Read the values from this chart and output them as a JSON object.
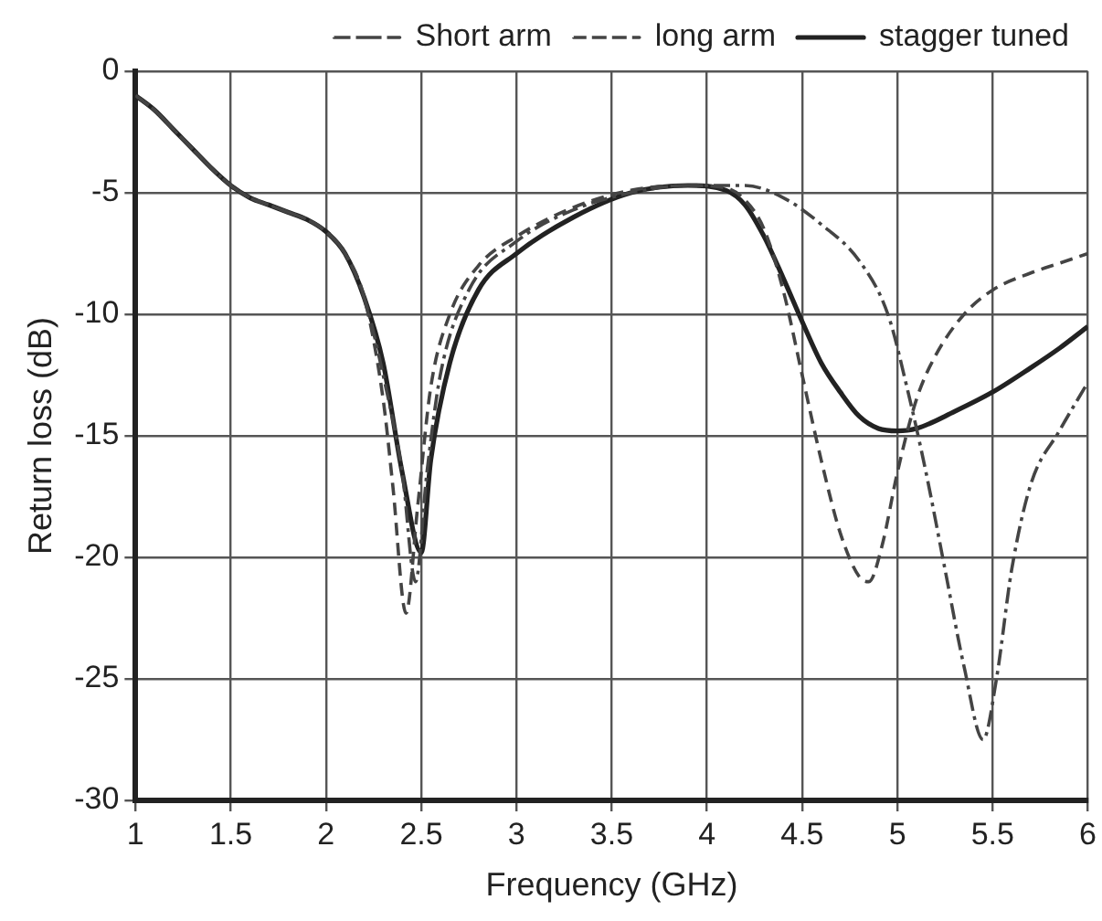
{
  "chart_data": {
    "type": "line",
    "xlabel": "Frequency (GHz)",
    "ylabel": "Return loss (dB)",
    "xlim": [
      1,
      6
    ],
    "xticks": [
      1,
      1.5,
      2,
      2.5,
      3,
      3.5,
      4,
      4.5,
      5,
      5.5,
      6
    ],
    "ylim": [
      -30,
      0
    ],
    "yticks": [
      -30,
      -25,
      -20,
      -15,
      -10,
      -5,
      0
    ],
    "grid": true,
    "legend": "top",
    "marker": "none",
    "series": [
      {
        "name": "Short arm",
        "color": "#444444",
        "line_style": "dashdot",
        "x": [
          1.0,
          1.1,
          1.2,
          1.3,
          1.4,
          1.5,
          1.6,
          1.7,
          1.8,
          1.9,
          2.0,
          2.1,
          2.2,
          2.3,
          2.4,
          2.47,
          2.53,
          2.6,
          2.75,
          3.0,
          3.3,
          3.6,
          3.9,
          4.2,
          4.4,
          4.6,
          4.8,
          4.95,
          5.05,
          5.15,
          5.25,
          5.35,
          5.45,
          5.52,
          5.6,
          5.7,
          5.85,
          6.0
        ],
        "values": [
          -1,
          -1.6,
          -2.4,
          -3.2,
          -4.0,
          -4.7,
          -5.2,
          -5.5,
          -5.8,
          -6.1,
          -6.6,
          -7.5,
          -9.3,
          -12.5,
          -16.5,
          -21,
          -16.5,
          -12.5,
          -9,
          -7,
          -5.7,
          -5.0,
          -4.7,
          -4.7,
          -5.2,
          -6.3,
          -7.8,
          -10,
          -13,
          -16.5,
          -20.5,
          -24.5,
          -27.5,
          -25,
          -20.5,
          -17,
          -14.8,
          -12.8
        ]
      },
      {
        "name": "long arm",
        "color": "#444444",
        "line_style": "dashed",
        "x": [
          1.0,
          1.1,
          1.2,
          1.3,
          1.4,
          1.5,
          1.6,
          1.7,
          1.8,
          1.9,
          2.0,
          2.1,
          2.2,
          2.3,
          2.35,
          2.42,
          2.48,
          2.55,
          2.65,
          2.8,
          3.0,
          3.3,
          3.6,
          3.9,
          4.1,
          4.2,
          4.3,
          4.4,
          4.5,
          4.6,
          4.7,
          4.8,
          4.85,
          4.92,
          5.0,
          5.1,
          5.2,
          5.35,
          5.5,
          5.7,
          5.85,
          6.0
        ],
        "values": [
          -1,
          -1.6,
          -2.4,
          -3.2,
          -4.0,
          -4.7,
          -5.2,
          -5.5,
          -5.8,
          -6.1,
          -6.6,
          -7.5,
          -9.3,
          -13.5,
          -17,
          -22.3,
          -18,
          -13,
          -10,
          -8,
          -6.8,
          -5.6,
          -4.9,
          -4.7,
          -4.8,
          -5.3,
          -6.5,
          -9,
          -12.5,
          -16,
          -19,
          -20.8,
          -21,
          -19.5,
          -16.5,
          -13.5,
          -11.7,
          -10,
          -9,
          -8.3,
          -7.9,
          -7.5
        ]
      },
      {
        "name": "stagger tuned",
        "color": "#222222",
        "line_style": "solid",
        "x": [
          1.0,
          1.1,
          1.2,
          1.3,
          1.4,
          1.5,
          1.6,
          1.7,
          1.8,
          1.9,
          2.0,
          2.1,
          2.2,
          2.3,
          2.4,
          2.5,
          2.55,
          2.65,
          2.8,
          3.0,
          3.3,
          3.6,
          3.9,
          4.1,
          4.2,
          4.3,
          4.4,
          4.5,
          4.6,
          4.7,
          4.8,
          4.9,
          5.0,
          5.1,
          5.3,
          5.5,
          5.7,
          5.85,
          6.0
        ],
        "values": [
          -1,
          -1.6,
          -2.4,
          -3.2,
          -4.0,
          -4.7,
          -5.2,
          -5.5,
          -5.8,
          -6.1,
          -6.6,
          -7.5,
          -9.3,
          -12,
          -16.5,
          -19.8,
          -16,
          -12,
          -9,
          -7.5,
          -6,
          -5.0,
          -4.7,
          -4.9,
          -5.5,
          -6.8,
          -8.5,
          -10.3,
          -12,
          -13.2,
          -14.2,
          -14.7,
          -14.8,
          -14.7,
          -14,
          -13.2,
          -12.2,
          -11.4,
          -10.5
        ]
      }
    ]
  }
}
